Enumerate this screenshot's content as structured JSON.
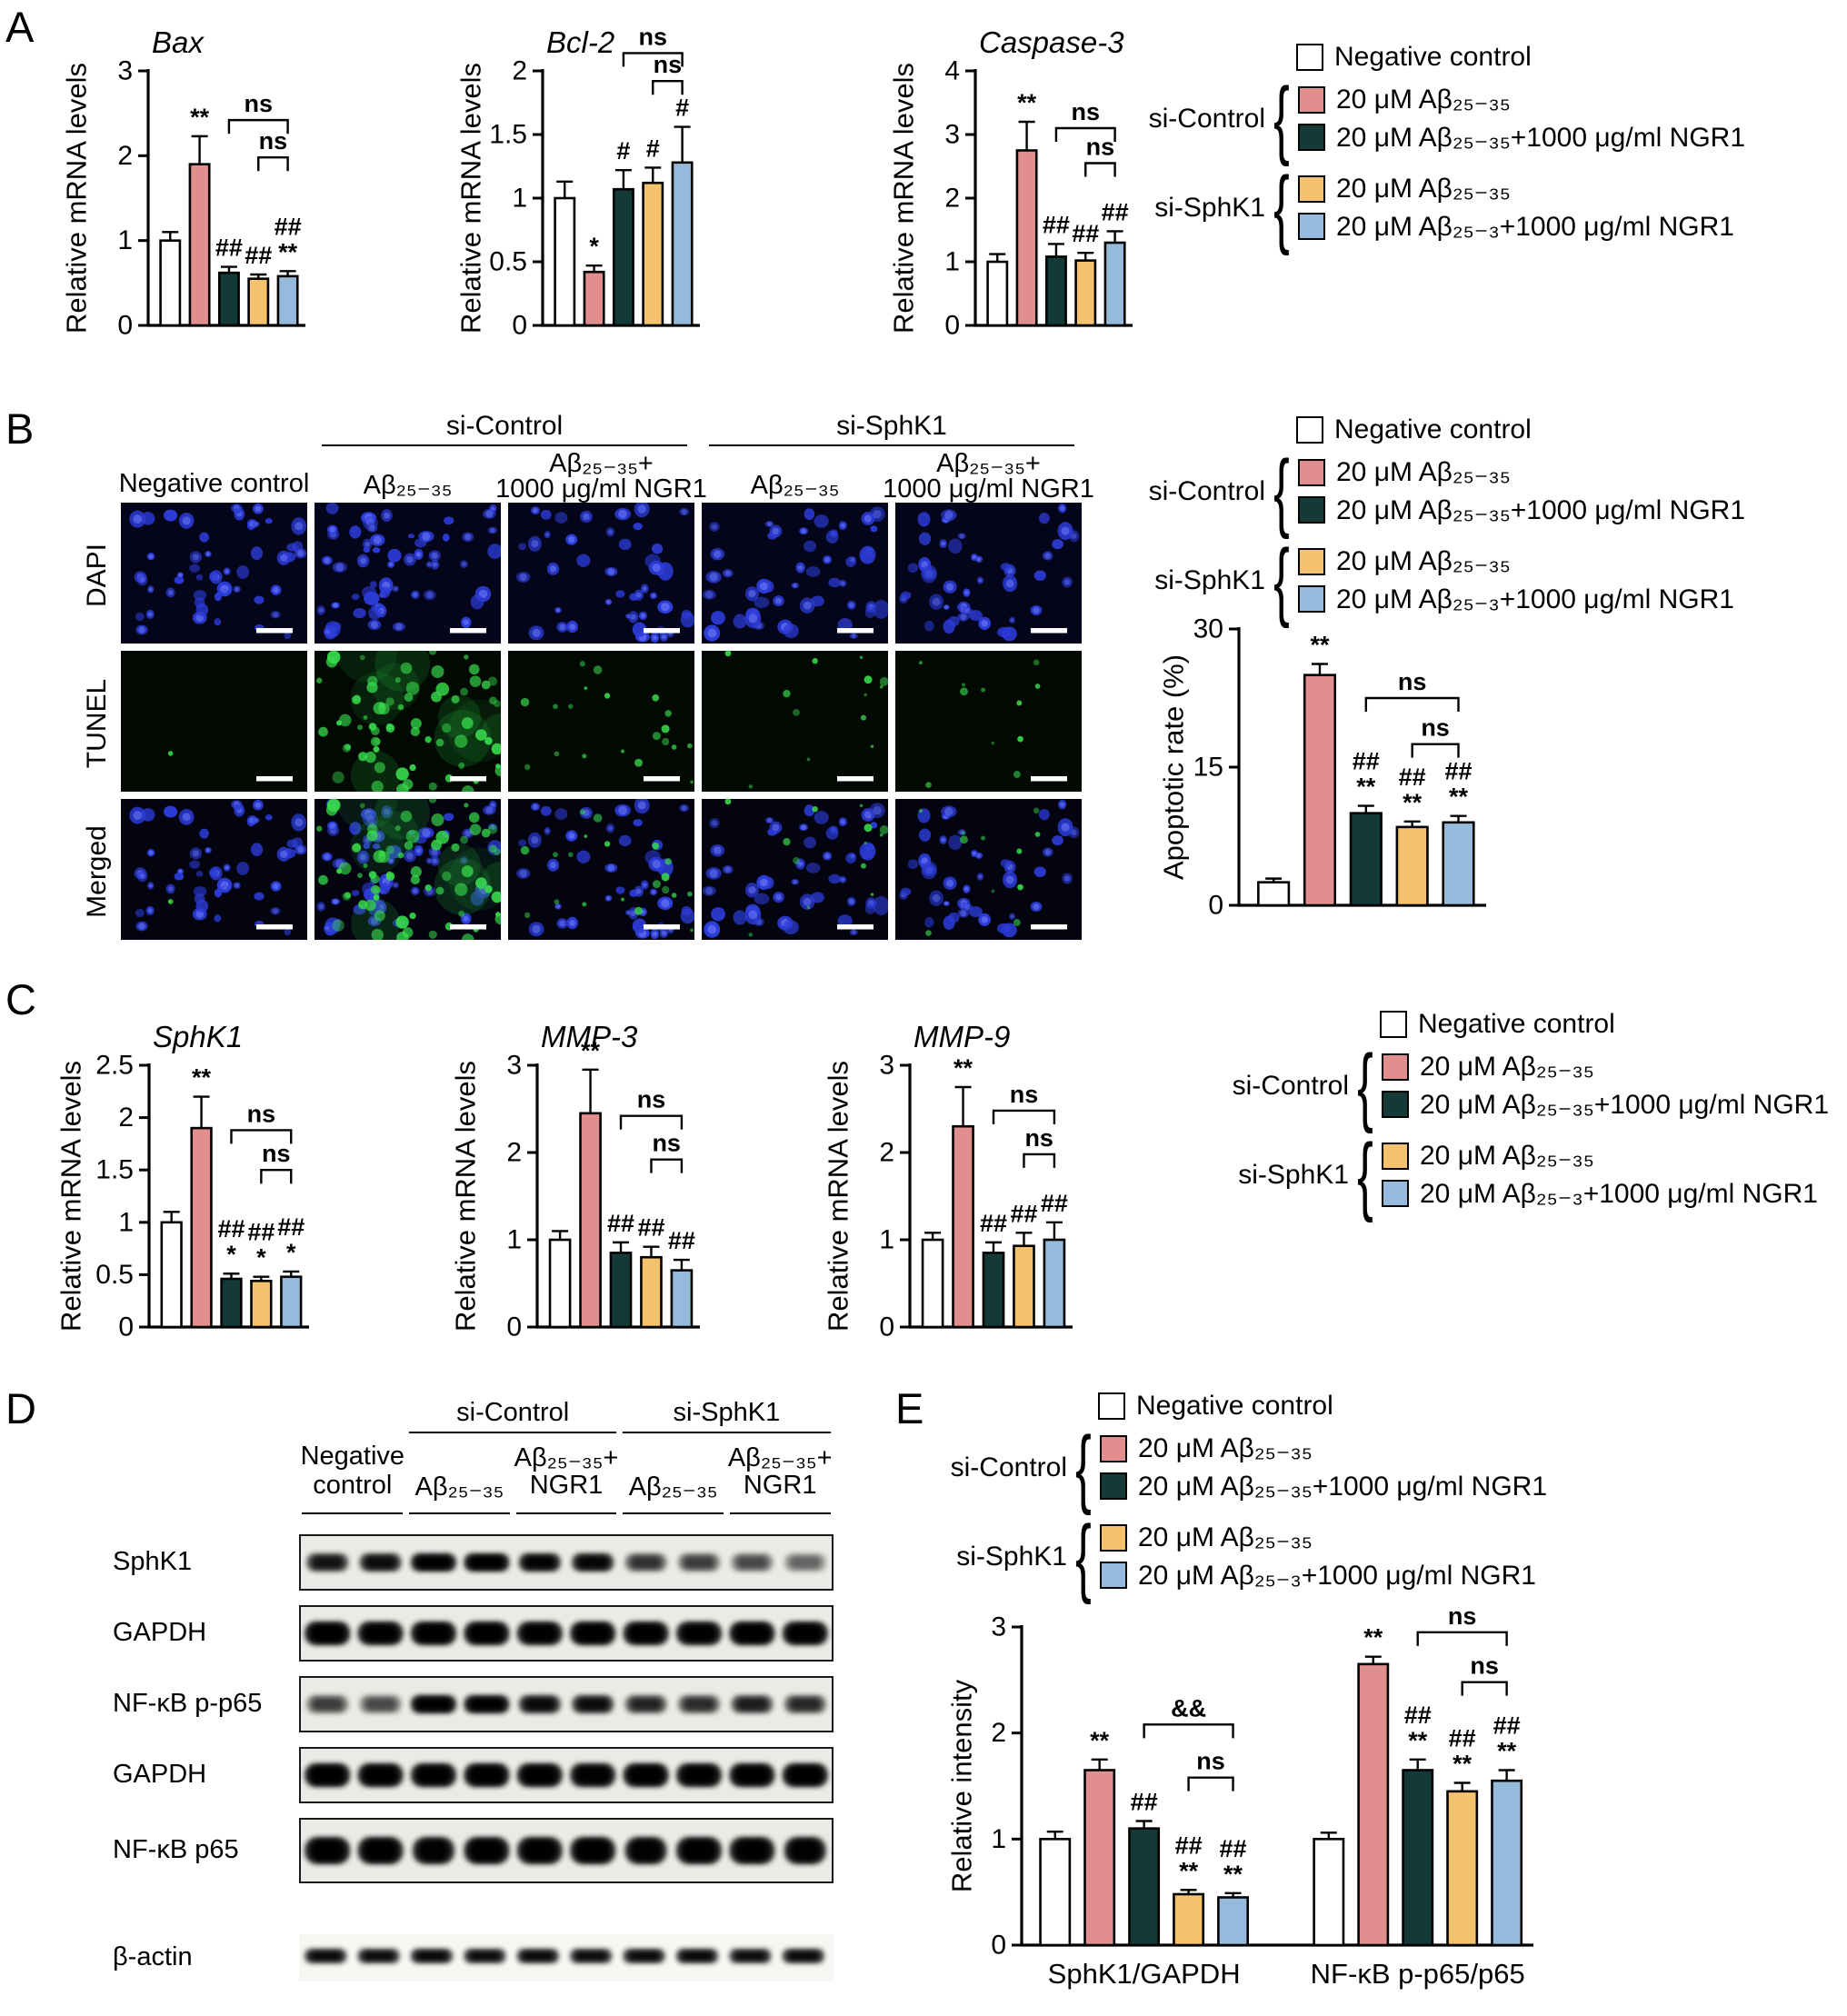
{
  "figure": {
    "panel_letters": {
      "a": "A",
      "b": "B",
      "c": "C",
      "d": "D",
      "e": "E"
    }
  },
  "bar_colors": [
    "#ffffff",
    "#e08e8e",
    "#143a38",
    "#f5c36d",
    "#96badb"
  ],
  "conditions": [
    "Negative control",
    "si-Control 20 μM Aβ₂₅₋₃₅",
    "si-Control 20 μM Aβ₂₅₋₃₅+1000 μg/ml NGR1",
    "si-SphK1 20 μM Aβ₂₅₋₃₅",
    "si-SphK1 20 μM Aβ₂₅₋₃₅+1000 μg/ml NGR1"
  ],
  "legend": {
    "negative": "Negative control",
    "groups": [
      {
        "label": "si-Control",
        "items": [
          {
            "color_index": 1,
            "text": "20 μM Aβ₂₅₋₃₅"
          },
          {
            "color_index": 2,
            "text": "20 μM Aβ₂₅₋₃₅+1000 μg/ml NGR1"
          }
        ]
      },
      {
        "label": "si-SphK1",
        "items": [
          {
            "color_index": 3,
            "text": "20 μM Aβ₂₅₋₃₅"
          },
          {
            "color_index": 4,
            "text": "20 μM Aβ₂₅₋₃+1000 μg/ml NGR1"
          }
        ]
      }
    ]
  },
  "chart_data": [
    {
      "id": "bax",
      "type": "bar",
      "title": "Bax",
      "ylabel": "Relative mRNA levels",
      "ylim": [
        0,
        3
      ],
      "yticks": [
        0,
        1,
        2,
        3
      ],
      "values": [
        1.0,
        1.9,
        0.62,
        0.55,
        0.58
      ],
      "errors": [
        0.1,
        0.33,
        0.07,
        0.05,
        0.06
      ],
      "annotations": [
        "",
        "**",
        "##",
        "##",
        "##\n**"
      ],
      "brackets": [
        {
          "from": 2,
          "to": 4,
          "y": 2.42,
          "label": "ns"
        },
        {
          "from": 3,
          "to": 4,
          "y": 1.98,
          "label": "ns"
        }
      ]
    },
    {
      "id": "bcl2",
      "type": "bar",
      "title": "Bcl-2",
      "ylabel": "Relative mRNA levels",
      "ylim": [
        0,
        2
      ],
      "yticks": [
        0,
        0.5,
        1,
        1.5,
        2
      ],
      "values": [
        1.0,
        0.42,
        1.07,
        1.12,
        1.28
      ],
      "errors": [
        0.13,
        0.05,
        0.15,
        0.12,
        0.28
      ],
      "annotations": [
        "",
        "*",
        "#",
        "#",
        "#"
      ],
      "brackets": [
        {
          "from": 2,
          "to": 4,
          "y": 2.14,
          "label": "ns"
        },
        {
          "from": 3,
          "to": 4,
          "y": 1.92,
          "label": "ns"
        }
      ]
    },
    {
      "id": "caspase3",
      "type": "bar",
      "title": "Caspase-3",
      "ylabel": "Relative mRNA levels",
      "ylim": [
        0,
        4
      ],
      "yticks": [
        0,
        1,
        2,
        3,
        4
      ],
      "values": [
        1.0,
        2.75,
        1.08,
        1.02,
        1.3
      ],
      "errors": [
        0.12,
        0.45,
        0.2,
        0.12,
        0.18
      ],
      "annotations": [
        "",
        "**",
        "##",
        "##",
        "##"
      ],
      "brackets": [
        {
          "from": 2,
          "to": 4,
          "y": 3.1,
          "label": "ns"
        },
        {
          "from": 3,
          "to": 4,
          "y": 2.55,
          "label": "ns"
        }
      ]
    },
    {
      "id": "apoptotic",
      "type": "bar",
      "title": "",
      "ylabel": "Apoptotic rate (%)",
      "ylim": [
        0,
        30
      ],
      "yticks": [
        0,
        15,
        30
      ],
      "values": [
        2.5,
        25,
        10,
        8.5,
        9
      ],
      "errors": [
        0.4,
        1.2,
        0.8,
        0.6,
        0.7
      ],
      "annotations": [
        "",
        "**",
        "##\n**",
        "##\n**",
        "##\n**"
      ],
      "brackets": [
        {
          "from": 2,
          "to": 4,
          "y": 22.5,
          "label": "ns"
        },
        {
          "from": 3,
          "to": 4,
          "y": 17.5,
          "label": "ns"
        }
      ]
    },
    {
      "id": "sphk1",
      "type": "bar",
      "title": "SphK1",
      "ylabel": "Relative mRNA levels",
      "ylim": [
        0,
        2.5
      ],
      "yticks": [
        0,
        0.5,
        1,
        1.5,
        2,
        2.5
      ],
      "values": [
        1.0,
        1.9,
        0.46,
        0.44,
        0.48
      ],
      "errors": [
        0.1,
        0.3,
        0.05,
        0.04,
        0.05
      ],
      "annotations": [
        "",
        "**",
        "##\n*",
        "##\n*",
        "##\n*"
      ],
      "brackets": [
        {
          "from": 2,
          "to": 4,
          "y": 1.88,
          "label": "ns"
        },
        {
          "from": 3,
          "to": 4,
          "y": 1.5,
          "label": "ns"
        }
      ]
    },
    {
      "id": "mmp3",
      "type": "bar",
      "title": "MMP-3",
      "ylabel": "Relative mRNA levels",
      "ylim": [
        0,
        3
      ],
      "yticks": [
        0,
        1,
        2,
        3
      ],
      "values": [
        1.0,
        2.45,
        0.85,
        0.8,
        0.65
      ],
      "errors": [
        0.1,
        0.5,
        0.12,
        0.12,
        0.12
      ],
      "annotations": [
        "",
        "**",
        "##",
        "##",
        "##"
      ],
      "brackets": [
        {
          "from": 2,
          "to": 4,
          "y": 2.42,
          "label": "ns"
        },
        {
          "from": 3,
          "to": 4,
          "y": 1.92,
          "label": "ns"
        }
      ]
    },
    {
      "id": "mmp9",
      "type": "bar",
      "title": "MMP-9",
      "ylabel": "Relative mRNA levels",
      "ylim": [
        0,
        3
      ],
      "yticks": [
        0,
        1,
        2,
        3
      ],
      "values": [
        1.0,
        2.3,
        0.85,
        0.93,
        1.0
      ],
      "errors": [
        0.08,
        0.45,
        0.12,
        0.15,
        0.2
      ],
      "annotations": [
        "",
        "**",
        "##",
        "##",
        "##"
      ],
      "brackets": [
        {
          "from": 2,
          "to": 4,
          "y": 2.48,
          "label": "ns"
        },
        {
          "from": 3,
          "to": 4,
          "y": 1.98,
          "label": "ns"
        }
      ]
    },
    {
      "id": "intensity",
      "type": "bar",
      "title": "",
      "ylabel": "Relative intensity",
      "ylim": [
        0,
        3
      ],
      "yticks": [
        0,
        1,
        2,
        3
      ],
      "groups": [
        {
          "label": "SphK1/GAPDH",
          "values": [
            1.0,
            1.65,
            1.1,
            0.48,
            0.45
          ],
          "errors": [
            0.07,
            0.1,
            0.07,
            0.04,
            0.04
          ],
          "annotations": [
            "",
            "**",
            "##",
            "##\n**",
            "##\n**"
          ],
          "brackets": [
            {
              "from": 2,
              "to": 4,
              "y": 2.08,
              "label": "&&"
            },
            {
              "from": 3,
              "to": 4,
              "y": 1.58,
              "label": "ns"
            }
          ]
        },
        {
          "label": "NF-κB p-p65/p65",
          "values": [
            1.0,
            2.65,
            1.65,
            1.45,
            1.55
          ],
          "errors": [
            0.06,
            0.07,
            0.1,
            0.08,
            0.1
          ],
          "annotations": [
            "",
            "**",
            "##\n**",
            "##\n**",
            "##\n**"
          ],
          "brackets": [
            {
              "from": 2,
              "to": 4,
              "y": 2.95,
              "label": "ns"
            },
            {
              "from": 3,
              "to": 4,
              "y": 2.48,
              "label": "ns"
            }
          ]
        }
      ]
    }
  ],
  "microscopy": {
    "row_labels": [
      "DAPI",
      "TUNEL",
      "Merged"
    ],
    "group_headers": [
      "si-Control",
      "si-SphK1"
    ],
    "column_labels": [
      [
        "Negative control"
      ],
      [
        "Aβ₂₅₋₃₅"
      ],
      [
        "Aβ₂₅₋₃₅+",
        "1000 μg/ml NGR1"
      ],
      [
        "Aβ₂₅₋₃₅"
      ],
      [
        "Aβ₂₅₋₃₅+",
        "1000 μg/ml NGR1"
      ]
    ],
    "green_levels": [
      0.02,
      1.0,
      0.28,
      0.18,
      0.15
    ],
    "nuclei_counts": [
      52,
      58,
      46,
      50,
      44
    ]
  },
  "blots": {
    "group_headers": [
      "si-Control",
      "si-SphK1"
    ],
    "negative_label": [
      "Negative",
      "control"
    ],
    "condition_labels": [
      [
        "Aβ₂₅₋₃₅"
      ],
      [
        "Aβ₂₅₋₃₅+",
        "NGR1"
      ],
      [
        "Aβ₂₅₋₃₅"
      ],
      [
        "Aβ₂₅₋₃₅+",
        "NGR1"
      ]
    ],
    "rows": [
      {
        "label": "SphK1",
        "band_height": 20,
        "boxed": true,
        "intensities": [
          0.72,
          0.78,
          0.93,
          0.95,
          0.88,
          0.85,
          0.55,
          0.5,
          0.45,
          0.35
        ]
      },
      {
        "label": "GAPDH",
        "band_height": 26,
        "boxed": true,
        "intensities": [
          0.95,
          0.93,
          0.94,
          0.95,
          0.92,
          0.95,
          0.93,
          0.92,
          0.95,
          0.93
        ]
      },
      {
        "label": "NF-κB p-p65",
        "band_height": 20,
        "boxed": true,
        "intensities": [
          0.5,
          0.45,
          0.95,
          0.93,
          0.8,
          0.78,
          0.62,
          0.58,
          0.66,
          0.6
        ]
      },
      {
        "label": "GAPDH",
        "band_height": 26,
        "boxed": true,
        "intensities": [
          0.95,
          0.94,
          0.93,
          0.95,
          0.94,
          0.92,
          0.95,
          0.93,
          0.94,
          0.95
        ]
      },
      {
        "label": "NF-κB p65",
        "band_height": 30,
        "boxed": true,
        "intensities": [
          0.92,
          0.93,
          0.9,
          0.92,
          0.91,
          0.93,
          0.9,
          0.92,
          0.91,
          0.9
        ]
      },
      {
        "label": "β-actin",
        "band_height": 16,
        "boxed": false,
        "intensities": [
          0.82,
          0.8,
          0.83,
          0.8,
          0.82,
          0.8,
          0.81,
          0.83,
          0.8,
          0.82
        ]
      }
    ]
  }
}
